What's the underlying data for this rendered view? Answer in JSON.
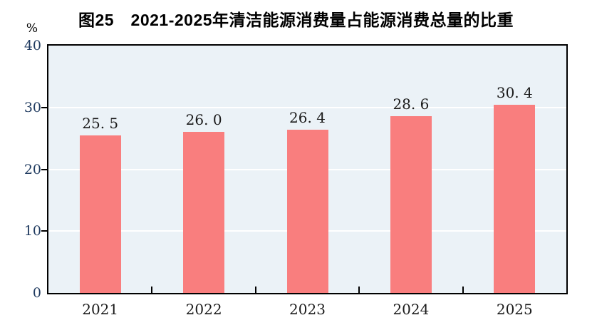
{
  "figure": {
    "title": "图25　2021-2025年清洁能源消费量占能源消费总量的比重",
    "unit_label": "%"
  },
  "chart_data": {
    "type": "bar",
    "title": "图25　2021-2025年清洁能源消费量占能源消费总量的比重",
    "categories": [
      "2021",
      "2022",
      "2023",
      "2024",
      "2025"
    ],
    "values": [
      25.5,
      26.0,
      26.4,
      28.6,
      30.4
    ],
    "value_labels": [
      "25. 5",
      "26. 0",
      "26. 4",
      "28. 6",
      "30. 4"
    ],
    "xlabel": "",
    "ylabel": "%",
    "ylim": [
      0,
      40
    ],
    "yticks": [
      0,
      10,
      20,
      30,
      40
    ],
    "gridline_values": [
      10,
      20,
      30
    ],
    "grid": "horizontal",
    "legend_position": "none",
    "colors": {
      "bar": "#F97E7E",
      "plot_background": "#EBF2F7",
      "gridline": "#FFFFFF",
      "axis_border": "#000000",
      "y_label": "#1F3A5F",
      "x_label": "#1A1A1A",
      "title": "#000000"
    }
  }
}
